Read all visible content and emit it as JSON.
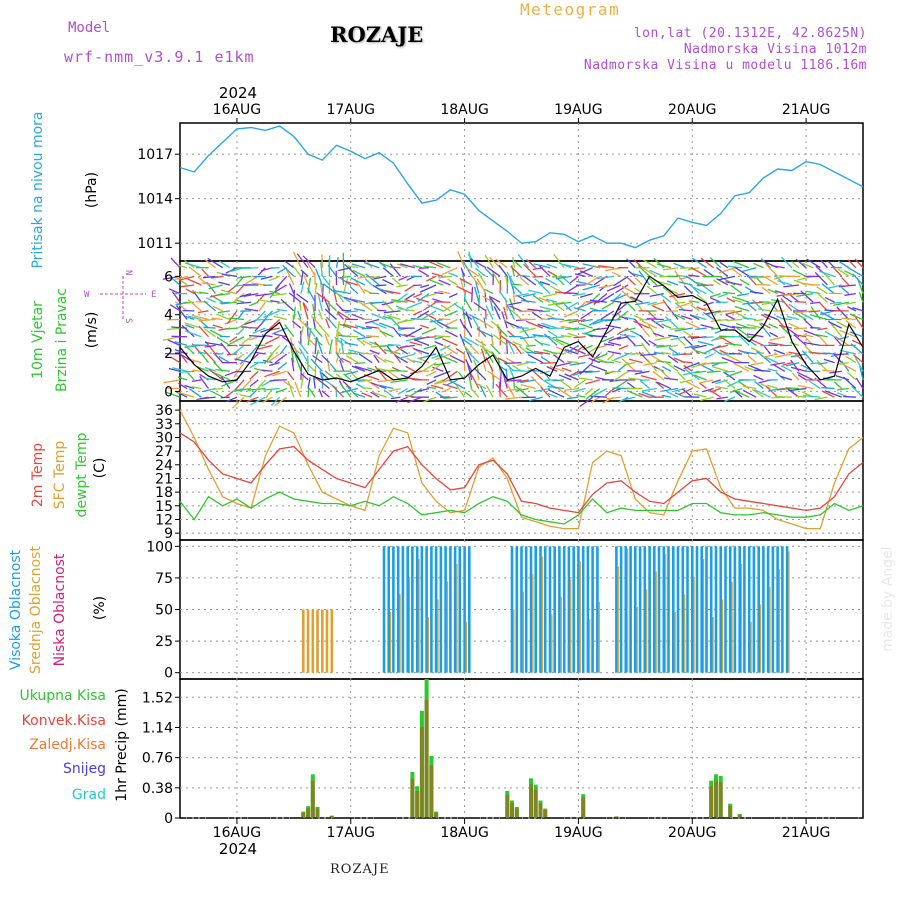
{
  "header": {
    "model_label": "Model",
    "model_name": "wrf-nmm_v3.9.1 e1km",
    "station_title": "ROZAJE",
    "meteogram_label": "Meteogram",
    "coords": "lon,lat (20.1312E, 42.8625N)",
    "altitude": "Nadmorska Visina 1012m",
    "model_altitude": "Nadmorska Visina u modelu 1186.16m"
  },
  "footer": {
    "station": "ROZAJE",
    "made_by": "made by Angel"
  },
  "colors": {
    "pressure": "#29a7e1",
    "temp2m": "#e8453c",
    "sfctemp": "#e0a030",
    "dewpoint": "#2ec82e",
    "wind_speed": "#000000",
    "wind_label": "#2ec82e",
    "cloud_high": "#1a9fe6",
    "cloud_mid": "#e0a030",
    "cloud_low": "#d0207a",
    "precip_total": "#2ec82e",
    "precip_conv": "#e8453c",
    "precip_frozen": "#f07830",
    "snow": "#4a40e0",
    "hail": "#28c8c8",
    "purple": "#b04fd0"
  },
  "chart_data": [
    {
      "type": "line",
      "panel": "pressure",
      "ylabel": "Pritisak na nivou mora",
      "unit": "(hPa)",
      "yticks": [
        1011,
        1014,
        1017
      ],
      "ylim": [
        1009.8,
        1019.1
      ],
      "x_top_year": "2024",
      "xtick_labels": [
        "16AUG",
        "17AUG",
        "18AUG",
        "19AUG",
        "20AUG",
        "21AUG"
      ],
      "x": [
        0,
        3,
        6,
        9,
        12,
        15,
        18,
        21,
        24,
        27,
        30,
        33,
        36,
        39,
        42,
        45,
        48,
        51,
        54,
        57,
        60,
        63,
        66,
        69,
        72,
        75,
        78,
        81,
        84,
        87,
        90,
        93,
        96,
        99,
        102,
        105,
        108,
        111,
        114,
        117,
        120,
        123,
        126,
        129,
        132,
        135,
        138,
        141,
        144
      ],
      "series": [
        {
          "values": [
            1016.1,
            1015.8,
            1016.9,
            1017.8,
            1018.7,
            1018.8,
            1018.6,
            1018.9,
            1018.2,
            1017.0,
            1016.6,
            1017.6,
            1017.2,
            1016.7,
            1017.1,
            1016.4,
            1015.0,
            1013.7,
            1013.9,
            1014.6,
            1014.3,
            1013.2,
            1012.5,
            1011.8,
            1011.0,
            1011.1,
            1011.7,
            1011.6,
            1011.1,
            1011.5,
            1011.0,
            1011.0,
            1010.7,
            1011.2,
            1011.5,
            1012.7,
            1012.4,
            1012.2,
            1013.0,
            1014.2,
            1014.4,
            1015.4,
            1016.0,
            1015.9,
            1016.5,
            1016.3,
            1015.8,
            1015.3,
            1014.8
          ]
        }
      ]
    },
    {
      "type": "line",
      "panel": "wind",
      "ylabel_line1": "10m Vjetar",
      "ylabel_line2": "Brzina i Pravac",
      "unit": "(m/s)",
      "compass": {
        "n": "N",
        "w": "W",
        "e": "E",
        "s": "S"
      },
      "yticks": [
        0,
        2,
        4,
        6
      ],
      "ylim": [
        -0.5,
        6.8
      ],
      "x": [
        0,
        3,
        6,
        9,
        12,
        15,
        18,
        21,
        24,
        27,
        30,
        33,
        36,
        39,
        42,
        45,
        48,
        51,
        54,
        57,
        60,
        63,
        66,
        69,
        72,
        75,
        78,
        81,
        84,
        87,
        90,
        93,
        96,
        99,
        102,
        105,
        108,
        111,
        114,
        117,
        120,
        123,
        126,
        129,
        132,
        135,
        138,
        141,
        144
      ],
      "series": [
        {
          "values": [
            2.3,
            1.4,
            0.8,
            0.5,
            0.6,
            1.6,
            3.0,
            3.6,
            2.1,
            0.9,
            0.6,
            0.7,
            0.5,
            0.8,
            1.1,
            0.6,
            0.7,
            1.3,
            2.3,
            0.6,
            0.7,
            1.4,
            1.9,
            0.6,
            0.8,
            1.2,
            0.8,
            2.3,
            2.6,
            1.8,
            3.2,
            4.6,
            4.7,
            6.0,
            5.5,
            4.9,
            5.0,
            4.6,
            3.2,
            3.2,
            2.6,
            3.4,
            4.8,
            2.6,
            1.4,
            0.6,
            0.8,
            3.5,
            2.3
          ]
        }
      ]
    },
    {
      "type": "line",
      "panel": "temperature",
      "labels": [
        "2m Temp",
        "SFC Temp",
        "dewpt Temp"
      ],
      "unit": "(C)",
      "yticks": [
        9,
        12,
        15,
        18,
        21,
        24,
        27,
        30,
        33,
        36
      ],
      "ylim": [
        7.5,
        38
      ],
      "x": [
        0,
        3,
        6,
        9,
        12,
        15,
        18,
        21,
        24,
        27,
        30,
        33,
        36,
        39,
        42,
        45,
        48,
        51,
        54,
        57,
        60,
        63,
        66,
        69,
        72,
        75,
        78,
        81,
        84,
        87,
        90,
        93,
        96,
        99,
        102,
        105,
        108,
        111,
        114,
        117,
        120,
        123,
        126,
        129,
        132,
        135,
        138,
        141,
        144
      ],
      "series": [
        {
          "name": "2m Temp",
          "values": [
            31.0,
            29.0,
            25.0,
            22.0,
            21.0,
            20.0,
            24.0,
            27.5,
            28.0,
            25.0,
            23.0,
            21.0,
            20.0,
            19.0,
            23.0,
            27.0,
            28.0,
            24.0,
            21.0,
            18.5,
            19.0,
            24.0,
            25.0,
            22.0,
            16.0,
            15.5,
            14.5,
            14.0,
            13.5,
            17.5,
            20.0,
            20.5,
            18.0,
            16.0,
            15.5,
            18.0,
            20.5,
            21.0,
            18.0,
            16.5,
            16.0,
            15.5,
            15.0,
            14.5,
            14.0,
            14.5,
            17.0,
            22.0,
            24.5
          ]
        },
        {
          "name": "SFC Temp",
          "values": [
            36.0,
            30.0,
            23.0,
            17.0,
            15.5,
            14.5,
            26.0,
            32.5,
            31.0,
            24.0,
            18.0,
            16.5,
            15.0,
            14.0,
            26.0,
            32.0,
            31.0,
            20.0,
            16.0,
            13.5,
            14.0,
            23.5,
            25.5,
            21.0,
            12.5,
            11.5,
            10.5,
            10.0,
            10.0,
            24.5,
            27.0,
            26.0,
            16.5,
            13.5,
            13.0,
            20.5,
            27.0,
            27.5,
            19.0,
            14.5,
            14.5,
            14.0,
            12.0,
            11.0,
            10.0,
            10.0,
            20.0,
            27.5,
            30.0
          ]
        },
        {
          "name": "dewpt Temp",
          "values": [
            16.0,
            12.0,
            17.0,
            15.0,
            16.5,
            14.5,
            16.5,
            18.0,
            16.5,
            16.0,
            15.5,
            15.5,
            15.0,
            16.0,
            15.0,
            17.0,
            15.5,
            13.0,
            13.5,
            14.0,
            13.5,
            15.5,
            17.0,
            16.0,
            13.0,
            12.0,
            11.5,
            11.0,
            13.0,
            16.5,
            13.5,
            14.5,
            14.0,
            14.0,
            14.0,
            14.0,
            15.5,
            15.5,
            13.5,
            13.0,
            13.0,
            13.5,
            13.0,
            12.5,
            12.5,
            13.0,
            15.5,
            14.0,
            15.0
          ]
        }
      ]
    },
    {
      "type": "bar",
      "panel": "clouds",
      "labels": [
        "Visoka Oblacnost",
        "Srednja Oblacnost",
        "Niska Oblacnost"
      ],
      "unit": "(%)",
      "yticks": [
        0,
        25,
        50,
        75,
        100
      ],
      "ylim": [
        -5,
        105
      ],
      "segments": [
        {
          "series": "Visoka Oblacnost",
          "start_hour": 12,
          "end_hour": 14,
          "value": 0
        },
        {
          "series": "Srednja Oblacnost",
          "start_hour": 26,
          "end_hour": 32,
          "value": 50
        },
        {
          "series": "Visoka Oblacnost",
          "start_hour": 43,
          "end_hour": 61,
          "value": 100
        },
        {
          "series": "Visoka Oblacnost",
          "start_hour": 70,
          "end_hour": 88,
          "value": 100
        },
        {
          "series": "Visoka Oblacnost",
          "start_hour": 92,
          "end_hour": 128,
          "value": 100
        }
      ]
    },
    {
      "type": "bar",
      "panel": "precipitation",
      "labels": [
        "Ukupna Kisa",
        "Konvek.Kisa",
        "Zaledj.Kisa",
        "Snijeg",
        "Grad"
      ],
      "unit": "1hr Precip (mm)",
      "yticks": [
        0,
        0.38,
        0.76,
        1.14,
        1.52
      ],
      "ylim": [
        0,
        1.75
      ],
      "xtick_labels": [
        "16AUG",
        "17AUG",
        "18AUG",
        "19AUG",
        "20AUG",
        "21AUG"
      ],
      "x_bottom_year": "2024",
      "bars": [
        {
          "hour": 26,
          "value": 0.08
        },
        {
          "hour": 27,
          "value": 0.15
        },
        {
          "hour": 28,
          "value": 0.55
        },
        {
          "hour": 29,
          "value": 0.14
        },
        {
          "hour": 32,
          "value": 0.03
        },
        {
          "hour": 49,
          "value": 0.58
        },
        {
          "hour": 50,
          "value": 0.4
        },
        {
          "hour": 51,
          "value": 1.35
        },
        {
          "hour": 52,
          "value": 1.75
        },
        {
          "hour": 53,
          "value": 0.78
        },
        {
          "hour": 54,
          "value": 0.08
        },
        {
          "hour": 69,
          "value": 0.34
        },
        {
          "hour": 70,
          "value": 0.22
        },
        {
          "hour": 71,
          "value": 0.14
        },
        {
          "hour": 74,
          "value": 0.5
        },
        {
          "hour": 75,
          "value": 0.42
        },
        {
          "hour": 76,
          "value": 0.22
        },
        {
          "hour": 77,
          "value": 0.12
        },
        {
          "hour": 85,
          "value": 0.3
        },
        {
          "hour": 92,
          "value": 0.02
        },
        {
          "hour": 112,
          "value": 0.47
        },
        {
          "hour": 113,
          "value": 0.55
        },
        {
          "hour": 114,
          "value": 0.53
        },
        {
          "hour": 116,
          "value": 0.18
        },
        {
          "hour": 118,
          "value": 0.05
        }
      ]
    }
  ]
}
